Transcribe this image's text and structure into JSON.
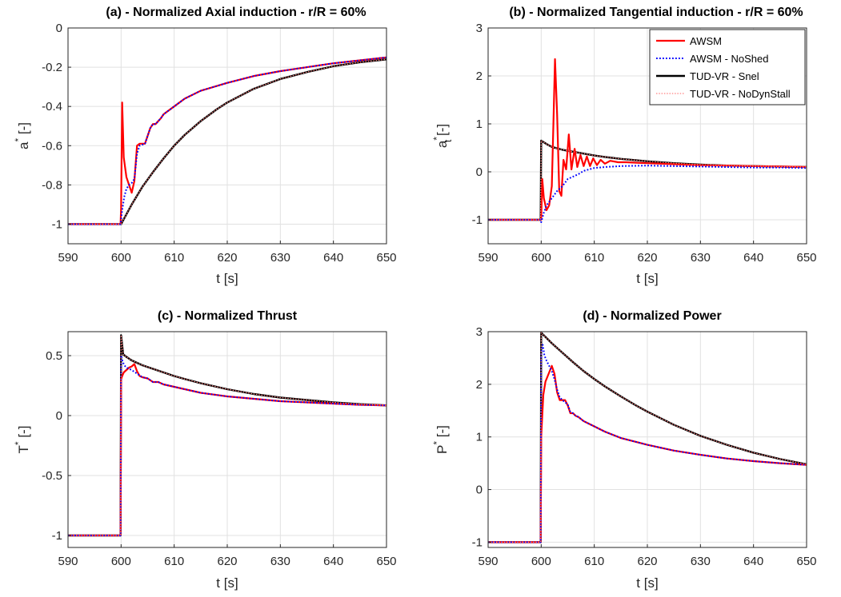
{
  "chart_data": [
    {
      "type": "line",
      "title": "(a) - Normalized Axial induction - r/R = 60%",
      "xlabel": "t [s]",
      "ylabel": "a",
      "ylabel_sup": "*",
      "ylabel_sub": "",
      "ylabel_tail": " [-]",
      "xlim": [
        590,
        650
      ],
      "ylim": [
        -1.1,
        0
      ],
      "xticks": [
        590,
        600,
        610,
        620,
        630,
        640,
        650
      ],
      "yticks": [
        0,
        -0.2,
        -0.4,
        -0.6,
        -0.8,
        -1
      ],
      "ytick_labels": [
        "0",
        "-0.2",
        "-0.4",
        "-0.6",
        "-0.8",
        "-1"
      ],
      "grid": true,
      "series": [
        {
          "name": "AWSM",
          "color": "#ff0000",
          "style": "solid",
          "x": [
            590,
            599.9,
            600.0,
            600.2,
            600.5,
            601.0,
            601.5,
            602.0,
            602.5,
            603.0,
            603.5,
            604.5,
            605.0,
            605.5,
            606.0,
            606.5,
            607.5,
            608.0,
            608.5,
            610,
            612,
            615,
            620,
            625,
            630,
            635,
            640,
            645,
            650
          ],
          "y": [
            -1,
            -1,
            -0.92,
            -0.38,
            -0.66,
            -0.76,
            -0.8,
            -0.84,
            -0.78,
            -0.6,
            -0.59,
            -0.59,
            -0.55,
            -0.51,
            -0.49,
            -0.49,
            -0.46,
            -0.44,
            -0.43,
            -0.4,
            -0.36,
            -0.32,
            -0.28,
            -0.245,
            -0.22,
            -0.2,
            -0.18,
            -0.165,
            -0.15
          ]
        },
        {
          "name": "AWSM - NoShed",
          "color": "#0000ff",
          "style": "dotted",
          "x": [
            590,
            599.9,
            600.2,
            600.6,
            601.0,
            601.5,
            602.0,
            602.5,
            603.0,
            603.5,
            604.5,
            605.0,
            605.5,
            606.0,
            606.5,
            607.5,
            608.0,
            608.5,
            610,
            612,
            615,
            620,
            625,
            630,
            635,
            640,
            645,
            650
          ],
          "y": [
            -1,
            -1,
            -0.93,
            -0.86,
            -0.82,
            -0.8,
            -0.79,
            -0.77,
            -0.64,
            -0.6,
            -0.59,
            -0.55,
            -0.51,
            -0.49,
            -0.49,
            -0.46,
            -0.44,
            -0.43,
            -0.4,
            -0.36,
            -0.32,
            -0.28,
            -0.245,
            -0.22,
            -0.2,
            -0.18,
            -0.165,
            -0.15
          ]
        },
        {
          "name": "TUD-VR - Snel",
          "color": "#000000",
          "style": "solid",
          "x": [
            590,
            599.9,
            600,
            602,
            604,
            606,
            608,
            610,
            612,
            615,
            618,
            620,
            625,
            630,
            635,
            640,
            645,
            650
          ],
          "y": [
            -1,
            -1,
            -1,
            -0.9,
            -0.81,
            -0.735,
            -0.665,
            -0.6,
            -0.545,
            -0.475,
            -0.415,
            -0.38,
            -0.31,
            -0.26,
            -0.225,
            -0.195,
            -0.175,
            -0.16
          ]
        },
        {
          "name": "TUD-VR - NoDynStall",
          "color": "#ff8080",
          "style": "dotted",
          "x": [
            590,
            599.9,
            600,
            602,
            604,
            606,
            608,
            610,
            612,
            615,
            618,
            620,
            625,
            630,
            635,
            640,
            645,
            650
          ],
          "y": [
            -1,
            -1,
            -1,
            -0.9,
            -0.81,
            -0.735,
            -0.665,
            -0.6,
            -0.545,
            -0.475,
            -0.415,
            -0.38,
            -0.31,
            -0.26,
            -0.225,
            -0.195,
            -0.175,
            -0.16
          ]
        }
      ]
    },
    {
      "type": "line",
      "title": "(b) - Normalized Tangential induction - r/R = 60%",
      "xlabel": "t [s]",
      "ylabel": "a",
      "ylabel_sup": "*",
      "ylabel_sub": "t",
      "ylabel_tail": " [-]",
      "xlim": [
        590,
        650
      ],
      "ylim": [
        -1.5,
        3
      ],
      "xticks": [
        590,
        600,
        610,
        620,
        630,
        640,
        650
      ],
      "yticks": [
        3,
        2,
        1,
        0,
        -1
      ],
      "ytick_labels": [
        "3",
        "2",
        "1",
        "0",
        "-1"
      ],
      "grid": true,
      "legend": {
        "placement": "top-right",
        "entries": [
          "AWSM",
          "AWSM - NoShed",
          "TUD-VR - Snel",
          "TUD-VR - NoDynStall"
        ]
      },
      "series": [
        {
          "name": "AWSM",
          "color": "#ff0000",
          "style": "solid",
          "x": [
            590,
            599.9,
            600.0,
            600.2,
            600.5,
            601.0,
            601.5,
            602.0,
            602.3,
            602.6,
            603.0,
            603.4,
            603.8,
            604.2,
            604.7,
            605.2,
            605.7,
            606.3,
            606.8,
            607.4,
            608.0,
            608.6,
            609.2,
            609.8,
            610.5,
            611.2,
            612.0,
            613.0,
            614.5,
            616,
            618,
            620,
            625,
            630,
            635,
            640,
            645,
            650
          ],
          "y": [
            -1,
            -1,
            -1.0,
            -0.15,
            -0.55,
            -0.8,
            -0.7,
            -0.3,
            1.0,
            2.35,
            1.2,
            -0.4,
            -0.5,
            0.25,
            0.05,
            0.78,
            0.05,
            0.48,
            0.1,
            0.35,
            0.12,
            0.32,
            0.12,
            0.28,
            0.14,
            0.25,
            0.17,
            0.23,
            0.2,
            0.2,
            0.19,
            0.18,
            0.16,
            0.14,
            0.13,
            0.12,
            0.11,
            0.1
          ]
        },
        {
          "name": "AWSM - NoShed",
          "color": "#0000ff",
          "style": "dotted",
          "x": [
            590,
            599.9,
            600.0,
            600.5,
            601.0,
            602.0,
            603.0,
            604.0,
            605.0,
            606.0,
            607.0,
            608.0,
            609.0,
            610.0,
            612.0,
            615.0,
            620,
            625,
            630,
            635,
            640,
            645,
            650
          ],
          "y": [
            -1,
            -1,
            -1.05,
            -0.85,
            -0.7,
            -0.55,
            -0.4,
            -0.3,
            -0.15,
            -0.1,
            -0.05,
            0.02,
            0.05,
            0.08,
            0.1,
            0.12,
            0.13,
            0.12,
            0.11,
            0.1,
            0.09,
            0.09,
            0.08
          ]
        },
        {
          "name": "TUD-VR - Snel",
          "color": "#000000",
          "style": "solid",
          "x": [
            590,
            599.9,
            600,
            601,
            602,
            604,
            606,
            608,
            610,
            612,
            615,
            618,
            620,
            625,
            630,
            635,
            640,
            645,
            650
          ],
          "y": [
            -1,
            -1,
            0.65,
            0.58,
            0.52,
            0.46,
            0.42,
            0.38,
            0.34,
            0.31,
            0.27,
            0.24,
            0.22,
            0.18,
            0.15,
            0.13,
            0.12,
            0.11,
            0.1
          ]
        },
        {
          "name": "TUD-VR - NoDynStall",
          "color": "#ff8080",
          "style": "dotted",
          "x": [
            590,
            599.9,
            600,
            601,
            602,
            604,
            606,
            608,
            610,
            612,
            615,
            618,
            620,
            625,
            630,
            635,
            640,
            645,
            650
          ],
          "y": [
            -1,
            -1,
            0.65,
            0.58,
            0.52,
            0.46,
            0.42,
            0.38,
            0.34,
            0.31,
            0.27,
            0.24,
            0.22,
            0.18,
            0.15,
            0.13,
            0.12,
            0.11,
            0.1
          ]
        }
      ]
    },
    {
      "type": "line",
      "title": "(c) - Normalized Thrust",
      "xlabel": "t [s]",
      "ylabel": "T",
      "ylabel_sup": "*",
      "ylabel_sub": "",
      "ylabel_tail": " [-]",
      "xlim": [
        590,
        650
      ],
      "ylim": [
        -1.1,
        0.7
      ],
      "xticks": [
        590,
        600,
        610,
        620,
        630,
        640,
        650
      ],
      "yticks": [
        0.5,
        0,
        -0.5,
        -1
      ],
      "ytick_labels": [
        "0.5",
        "0",
        "-0.5",
        "-1"
      ],
      "grid": true,
      "series": [
        {
          "name": "AWSM",
          "color": "#ff0000",
          "style": "solid",
          "x": [
            590,
            599.9,
            600.0,
            600.2,
            600.5,
            601.0,
            601.5,
            602.0,
            602.5,
            603.0,
            603.5,
            604.0,
            605.0,
            606.0,
            607.0,
            608.0,
            610,
            612,
            615,
            620,
            625,
            630,
            635,
            640,
            645,
            650
          ],
          "y": [
            -1,
            -1,
            0.3,
            0.33,
            0.36,
            0.38,
            0.4,
            0.41,
            0.43,
            0.37,
            0.33,
            0.32,
            0.31,
            0.28,
            0.28,
            0.26,
            0.24,
            0.22,
            0.19,
            0.16,
            0.14,
            0.12,
            0.11,
            0.1,
            0.09,
            0.085
          ]
        },
        {
          "name": "AWSM - NoShed",
          "color": "#0000ff",
          "style": "dotted",
          "x": [
            590,
            599.9,
            600.0,
            600.3,
            600.6,
            601.0,
            601.5,
            602.0,
            603.0,
            604.0,
            605.0,
            606.0,
            607.0,
            608.0,
            610,
            612,
            615,
            620,
            625,
            630,
            635,
            640,
            645,
            650
          ],
          "y": [
            -1,
            -1,
            0.5,
            0.45,
            0.42,
            0.4,
            0.39,
            0.38,
            0.35,
            0.32,
            0.31,
            0.28,
            0.28,
            0.26,
            0.24,
            0.22,
            0.19,
            0.16,
            0.14,
            0.12,
            0.11,
            0.1,
            0.09,
            0.085
          ]
        },
        {
          "name": "TUD-VR - Snel",
          "color": "#000000",
          "style": "solid",
          "x": [
            590,
            599.9,
            600,
            600.4,
            601,
            602,
            604,
            606,
            608,
            610,
            612,
            615,
            618,
            620,
            625,
            630,
            635,
            640,
            645,
            650
          ],
          "y": [
            -1,
            -1,
            0.67,
            0.51,
            0.49,
            0.46,
            0.42,
            0.39,
            0.36,
            0.33,
            0.305,
            0.27,
            0.24,
            0.22,
            0.18,
            0.15,
            0.13,
            0.11,
            0.095,
            0.085
          ]
        },
        {
          "name": "TUD-VR - NoDynStall",
          "color": "#ff8080",
          "style": "dotted",
          "x": [
            590,
            599.9,
            600,
            600.4,
            601,
            602,
            604,
            606,
            608,
            610,
            612,
            615,
            618,
            620,
            625,
            630,
            635,
            640,
            645,
            650
          ],
          "y": [
            -1,
            -1,
            0.67,
            0.51,
            0.49,
            0.46,
            0.42,
            0.39,
            0.36,
            0.33,
            0.305,
            0.27,
            0.24,
            0.22,
            0.18,
            0.15,
            0.13,
            0.11,
            0.095,
            0.085
          ]
        }
      ]
    },
    {
      "type": "line",
      "title": "(d) - Normalized Power",
      "xlabel": "t [s]",
      "ylabel": "P",
      "ylabel_sup": "*",
      "ylabel_sub": "",
      "ylabel_tail": " [-]",
      "xlim": [
        590,
        650
      ],
      "ylim": [
        -1.1,
        3
      ],
      "xticks": [
        590,
        600,
        610,
        620,
        630,
        640,
        650
      ],
      "yticks": [
        3,
        2,
        1,
        0,
        -1
      ],
      "ytick_labels": [
        "3",
        "2",
        "1",
        "0",
        "-1"
      ],
      "grid": true,
      "series": [
        {
          "name": "AWSM",
          "color": "#ff0000",
          "style": "solid",
          "x": [
            590,
            599.9,
            600.0,
            600.4,
            600.8,
            601.2,
            601.6,
            602.0,
            602.5,
            603.0,
            603.5,
            604.0,
            604.5,
            605.0,
            605.5,
            606.0,
            606.5,
            607.0,
            608.0,
            609.0,
            610,
            612,
            615,
            620,
            625,
            630,
            635,
            640,
            645,
            650
          ],
          "y": [
            -1,
            -1,
            1.0,
            1.8,
            2.05,
            2.15,
            2.25,
            2.35,
            2.2,
            1.85,
            1.7,
            1.7,
            1.7,
            1.6,
            1.45,
            1.45,
            1.4,
            1.38,
            1.3,
            1.25,
            1.2,
            1.1,
            0.98,
            0.85,
            0.74,
            0.66,
            0.59,
            0.54,
            0.5,
            0.47
          ]
        },
        {
          "name": "AWSM - NoShed",
          "color": "#0000ff",
          "style": "dotted",
          "x": [
            590,
            599.9,
            600.0,
            600.3,
            600.6,
            601.0,
            601.5,
            602.0,
            602.5,
            603.0,
            603.5,
            604.0,
            605.0,
            605.5,
            606.0,
            606.5,
            607.0,
            608.0,
            609.0,
            610,
            612,
            615,
            620,
            625,
            630,
            635,
            640,
            645,
            650
          ],
          "y": [
            -1,
            -1,
            2.6,
            2.75,
            2.55,
            2.45,
            2.35,
            2.25,
            2.1,
            1.9,
            1.75,
            1.7,
            1.62,
            1.47,
            1.45,
            1.4,
            1.38,
            1.3,
            1.25,
            1.2,
            1.1,
            0.98,
            0.85,
            0.74,
            0.66,
            0.59,
            0.54,
            0.5,
            0.47
          ]
        },
        {
          "name": "TUD-VR - Snel",
          "color": "#000000",
          "style": "solid",
          "x": [
            590,
            599.9,
            600,
            601,
            602,
            604,
            606,
            608,
            610,
            612,
            615,
            618,
            620,
            625,
            630,
            635,
            640,
            645,
            650
          ],
          "y": [
            -1,
            -1,
            2.98,
            2.88,
            2.78,
            2.6,
            2.42,
            2.25,
            2.1,
            1.96,
            1.77,
            1.59,
            1.48,
            1.23,
            1.02,
            0.85,
            0.7,
            0.58,
            0.48
          ]
        },
        {
          "name": "TUD-VR - NoDynStall",
          "color": "#ff8080",
          "style": "dotted",
          "x": [
            590,
            599.9,
            600,
            601,
            602,
            604,
            606,
            608,
            610,
            612,
            615,
            618,
            620,
            625,
            630,
            635,
            640,
            645,
            650
          ],
          "y": [
            -1,
            -1,
            2.98,
            2.88,
            2.78,
            2.6,
            2.42,
            2.25,
            2.1,
            1.96,
            1.77,
            1.59,
            1.48,
            1.23,
            1.02,
            0.85,
            0.7,
            0.58,
            0.48
          ]
        }
      ]
    }
  ]
}
